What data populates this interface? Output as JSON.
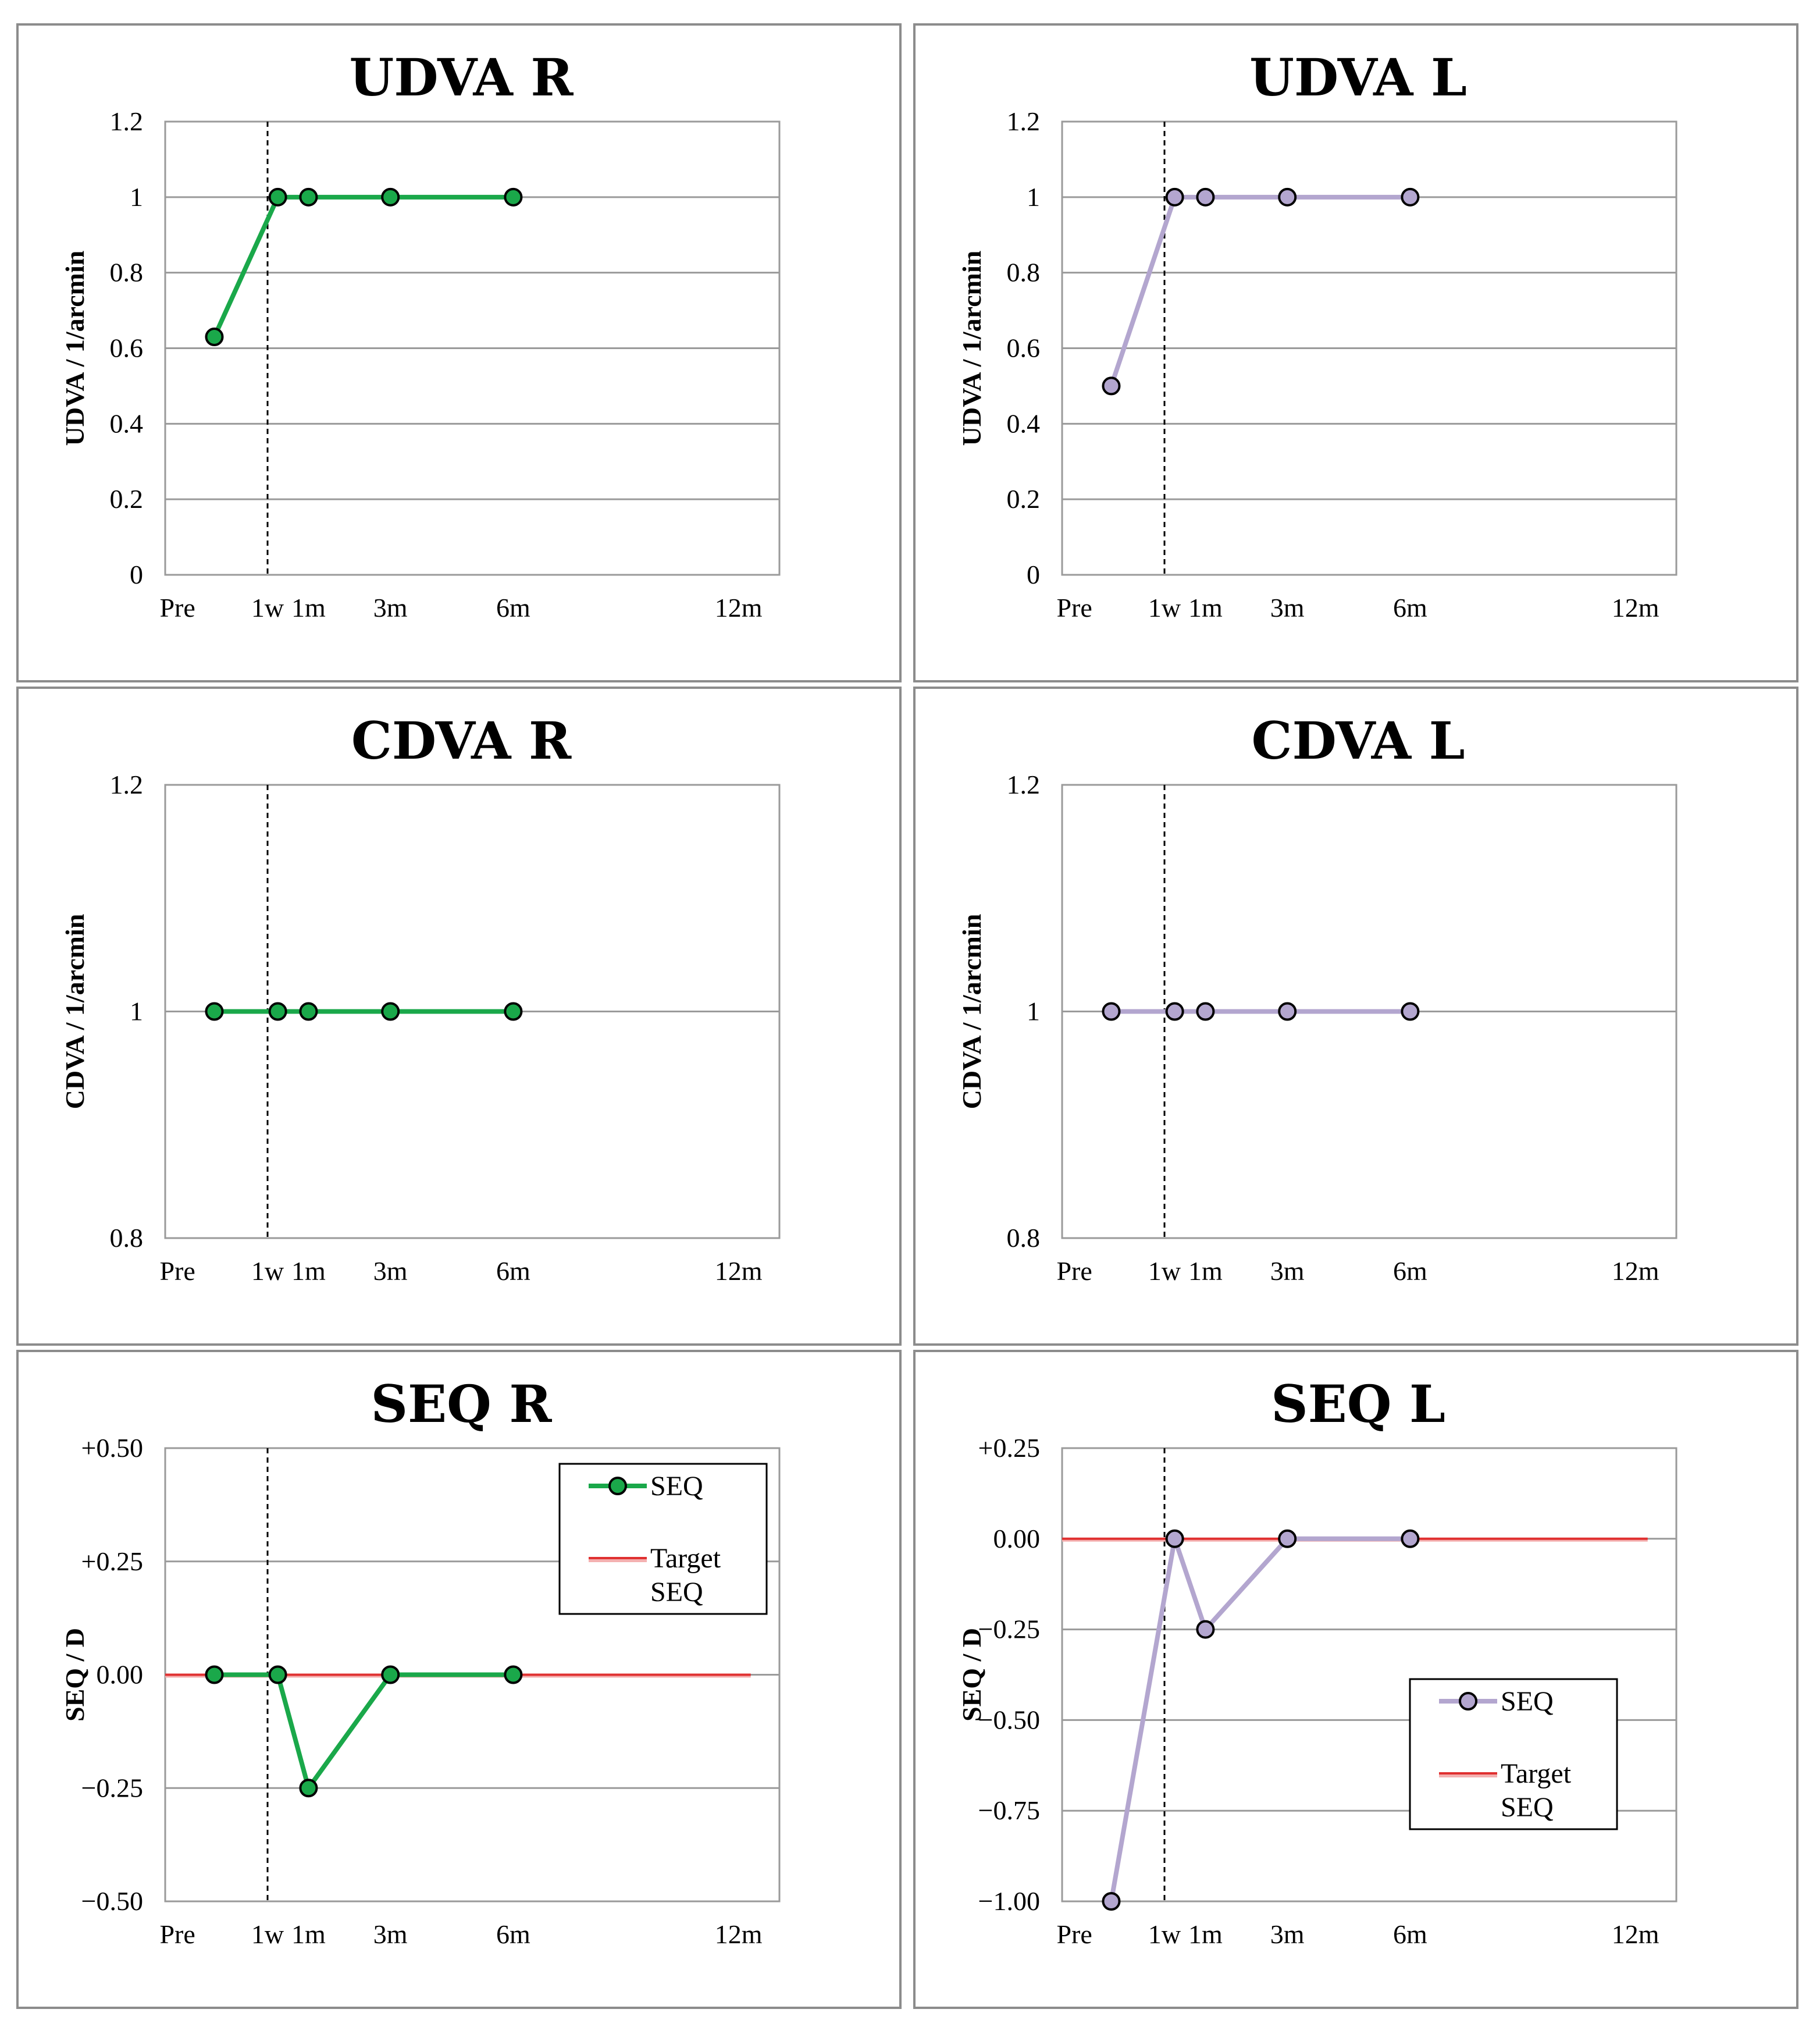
{
  "chart_data": [
    {
      "id": "udva-r",
      "type": "line",
      "title": "UDVA R",
      "ylabel": "UDVA / 1/arcmin",
      "ylim": [
        0,
        1.2
      ],
      "yticks": [
        "0",
        "0.2",
        "0.4",
        "0.6",
        "0.8",
        "1",
        "1.2"
      ],
      "xticks": [
        "Pre",
        "1w",
        "1m",
        "3m",
        "6m",
        "12m"
      ],
      "series": [
        {
          "name": "UDVA",
          "color": "#1aa84a",
          "x_months": [
            -1.3,
            0.25,
            1,
            3,
            6
          ],
          "values": [
            0.63,
            1,
            1,
            1,
            1
          ]
        }
      ],
      "legend": null
    },
    {
      "id": "udva-l",
      "type": "line",
      "title": "UDVA L",
      "ylabel": "UDVA / 1/arcmin",
      "ylim": [
        0,
        1.2
      ],
      "yticks": [
        "0",
        "0.2",
        "0.4",
        "0.6",
        "0.8",
        "1",
        "1.2"
      ],
      "xticks": [
        "Pre",
        "1w",
        "1m",
        "3m",
        "6m",
        "12m"
      ],
      "series": [
        {
          "name": "UDVA",
          "color": "#b3a6cf",
          "x_months": [
            -1.3,
            0.25,
            1,
            3,
            6
          ],
          "values": [
            0.5,
            1,
            1,
            1,
            1
          ]
        }
      ],
      "legend": null
    },
    {
      "id": "cdva-r",
      "type": "line",
      "title": "CDVA R",
      "ylabel": "CDVA / 1/arcmin",
      "ylim": [
        0.8,
        1.2
      ],
      "yticks": [
        "0.8",
        "1",
        "1.2"
      ],
      "xticks": [
        "Pre",
        "1w",
        "1m",
        "3m",
        "6m",
        "12m"
      ],
      "series": [
        {
          "name": "CDVA",
          "color": "#1aa84a",
          "x_months": [
            -1.3,
            0.25,
            1,
            3,
            6
          ],
          "values": [
            1,
            1,
            1,
            1,
            1
          ]
        }
      ],
      "legend": null
    },
    {
      "id": "cdva-l",
      "type": "line",
      "title": "CDVA L",
      "ylabel": "CDVA / 1/arcmin",
      "ylim": [
        0.8,
        1.2
      ],
      "yticks": [
        "0.8",
        "1",
        "1.2"
      ],
      "xticks": [
        "Pre",
        "1w",
        "1m",
        "3m",
        "6m",
        "12m"
      ],
      "series": [
        {
          "name": "CDVA",
          "color": "#b3a6cf",
          "x_months": [
            -1.3,
            0.25,
            1,
            3,
            6
          ],
          "values": [
            1,
            1,
            1,
            1,
            1
          ]
        }
      ],
      "legend": null
    },
    {
      "id": "seq-r",
      "type": "line",
      "title": "SEQ R",
      "ylabel": "SEQ / D",
      "ylim": [
        -0.5,
        0.5
      ],
      "yticks": [
        "−0.50",
        "−0.25",
        "0.00",
        "+0.25",
        "+0.50"
      ],
      "xticks": [
        "Pre",
        "1w",
        "1m",
        "3m",
        "6m",
        "12m"
      ],
      "series": [
        {
          "name": "SEQ",
          "color": "#1aa84a",
          "x_months": [
            -1.3,
            0.25,
            1,
            3,
            6
          ],
          "values": [
            0,
            0,
            -0.25,
            0,
            0
          ]
        }
      ],
      "target": {
        "name": "Target SEQ",
        "color": "#e03030",
        "value": 0
      },
      "legend": {
        "position": "top-right",
        "seq_label": "SEQ",
        "target_line1": "Target",
        "target_line2": "SEQ"
      }
    },
    {
      "id": "seq-l",
      "type": "line",
      "title": "SEQ L",
      "ylabel": "SEQ / D",
      "ylim": [
        -1,
        0.25
      ],
      "yticks": [
        "−1.00",
        "−0.75",
        "−0.50",
        "−0.25",
        "0.00",
        "+0.25"
      ],
      "xticks": [
        "Pre",
        "1w",
        "1m",
        "3m",
        "6m",
        "12m"
      ],
      "series": [
        {
          "name": "SEQ",
          "color": "#b3a6cf",
          "x_months": [
            -1.3,
            0.25,
            1,
            3,
            6
          ],
          "values": [
            -1,
            0,
            -0.25,
            0,
            0
          ]
        }
      ],
      "target": {
        "name": "Target SEQ",
        "color": "#e03030",
        "value": 0
      },
      "legend": {
        "position": "bottom-right",
        "seq_label": "SEQ",
        "target_line1": "Target",
        "target_line2": "SEQ"
      }
    }
  ]
}
